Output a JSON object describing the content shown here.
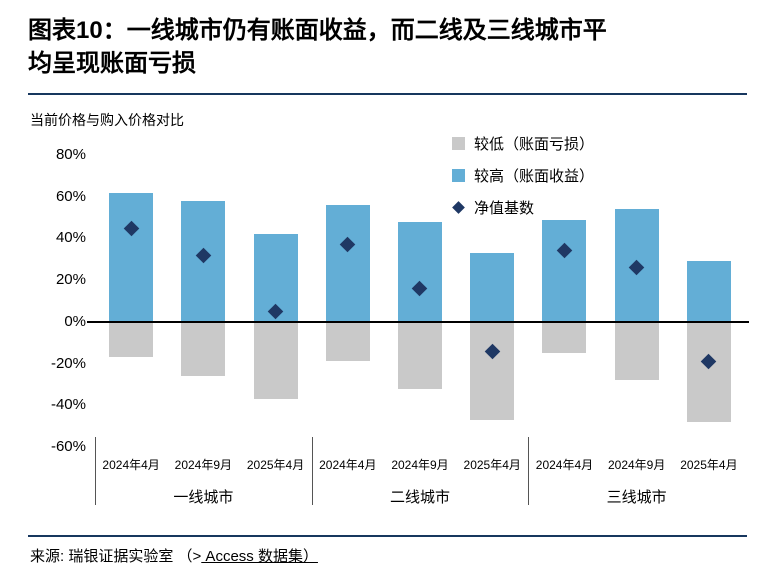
{
  "header": {
    "title_line1": "图表10：一线城市仍有账面收益，而二线及三线城市平",
    "title_line2": "均呈现账面亏损"
  },
  "chart_data": {
    "type": "bar",
    "title": "当前价格与购入价格对比",
    "ylim": [
      -60,
      80
    ],
    "ytick_step": 20,
    "yticks": [
      80,
      60,
      40,
      20,
      0,
      -20,
      -40,
      -60
    ],
    "grid": false,
    "legend_position": "top-right",
    "groups": [
      {
        "label": "一线城市",
        "categories": [
          "2024年4月",
          "2024年9月",
          "2025年4月"
        ]
      },
      {
        "label": "二线城市",
        "categories": [
          "2024年4月",
          "2024年9月",
          "2025年4月"
        ]
      },
      {
        "label": "三线城市",
        "categories": [
          "2024年4月",
          "2024年9月",
          "2025年4月"
        ]
      }
    ],
    "series": [
      {
        "name": "较低（账面亏损）",
        "type": "bar",
        "color": "#C9C9C9",
        "values": [
          -17,
          -26,
          -37,
          -19,
          -32,
          -47,
          -15,
          -28,
          -48
        ]
      },
      {
        "name": "较高（账面收益）",
        "type": "bar",
        "color": "#63AED6",
        "values": [
          62,
          58,
          42,
          56,
          48,
          33,
          49,
          54,
          29
        ]
      },
      {
        "name": "净值基数",
        "type": "scatter-diamond",
        "color": "#1F3864",
        "values": [
          45,
          32,
          5,
          37,
          16,
          -14,
          34,
          26,
          -19
        ]
      }
    ]
  },
  "footer": {
    "source_prefix": "来源: 瑞银证据实验室 （>",
    "source_link": " Access 数据集）"
  }
}
